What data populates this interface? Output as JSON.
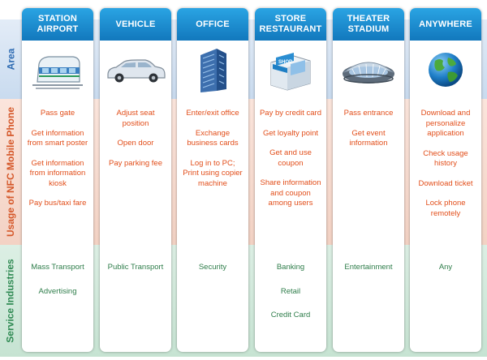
{
  "bands": {
    "area": "Area",
    "usage": "Usage of NFC Mobile Phone",
    "industries": "Service Industries"
  },
  "columns": [
    {
      "title_line1": "STATION",
      "title_line2": "AIRPORT",
      "illustration": "train-icon",
      "usage": [
        "Pass gate",
        "Get information\nfrom smart poster",
        "Get information\nfrom information\nkiosk",
        "Pay bus/taxi fare"
      ],
      "industries": [
        "Mass Transport",
        "Advertising"
      ]
    },
    {
      "title_line1": "VEHICLE",
      "title_line2": "",
      "illustration": "car-icon",
      "usage": [
        "Adjust seat\nposition",
        "Open door",
        "Pay parking fee"
      ],
      "industries": [
        "Public Transport"
      ]
    },
    {
      "title_line1": "OFFICE",
      "title_line2": "",
      "illustration": "office-building-icon",
      "usage": [
        "Enter/exit office",
        "Exchange\nbusiness cards",
        "Log in to PC;\nPrint using copier\nmachine"
      ],
      "industries": [
        "Security"
      ]
    },
    {
      "title_line1": "STORE",
      "title_line2": "RESTAURANT",
      "illustration": "shop-icon",
      "shop_sign": "SHOP",
      "usage": [
        "Pay by credit card",
        "Get loyalty point",
        "Get and use\ncoupon",
        "Share information\nand coupon\namong users"
      ],
      "industries": [
        "Banking",
        "Retail",
        "Credit Card"
      ]
    },
    {
      "title_line1": "THEATER",
      "title_line2": "STADIUM",
      "illustration": "stadium-icon",
      "usage": [
        "Pass entrance",
        "Get event\ninformation"
      ],
      "industries": [
        "Entertainment"
      ]
    },
    {
      "title_line1": "ANYWHERE",
      "title_line2": "",
      "illustration": "globe-icon",
      "usage": [
        "Download and\npersonalize\napplication",
        "Check usage\nhistory",
        "Download ticket",
        "Lock phone\nremotely"
      ],
      "industries": [
        "Any"
      ]
    }
  ],
  "colors": {
    "header": "#1a8fd6",
    "usage_text": "#e24e1a",
    "industry_text": "#2e7d4a",
    "area_label": "#2f6cb3",
    "usage_label": "#d5582a",
    "industry_label": "#2f8a53"
  }
}
